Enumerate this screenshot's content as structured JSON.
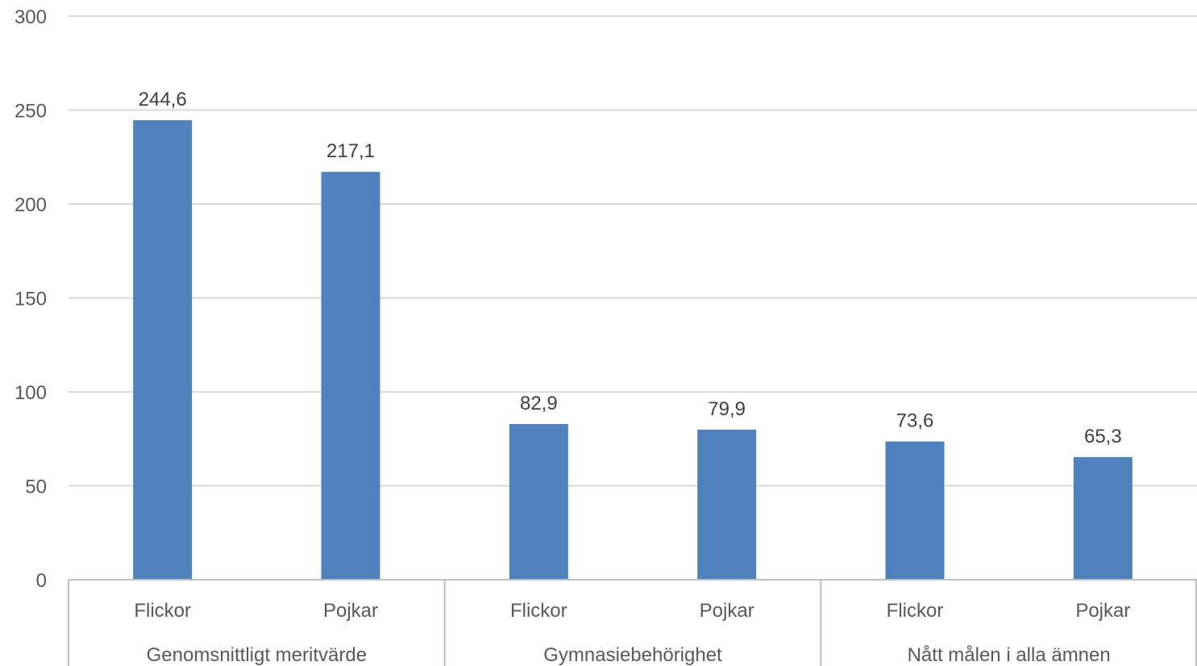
{
  "chart_data": {
    "type": "bar",
    "title": "",
    "xlabel": "",
    "ylabel": "",
    "ylim": [
      0,
      300
    ],
    "yticks": [
      "0",
      "50",
      "100",
      "150",
      "200",
      "250",
      "300"
    ],
    "grid": true,
    "legend": "none",
    "bar_color": "#4f81bd",
    "categories": [
      "Flickor",
      "Pojkar",
      "Flickor",
      "Pojkar",
      "Flickor",
      "Pojkar"
    ],
    "groups": [
      {
        "label": "Genomsnittligt meritvärde",
        "categories": [
          "Flickor",
          "Pojkar"
        ]
      },
      {
        "label": "Gymnasiebehörighet",
        "categories": [
          "Flickor",
          "Pojkar"
        ]
      },
      {
        "label": "Nått målen i alla ämnen",
        "categories": [
          "Flickor",
          "Pojkar"
        ]
      }
    ],
    "values": [
      244.6,
      217.1,
      82.9,
      79.9,
      73.6,
      65.3
    ],
    "data_labels": [
      "244,6",
      "217,1",
      "82,9",
      "79,9",
      "73,6",
      "65,3"
    ]
  }
}
